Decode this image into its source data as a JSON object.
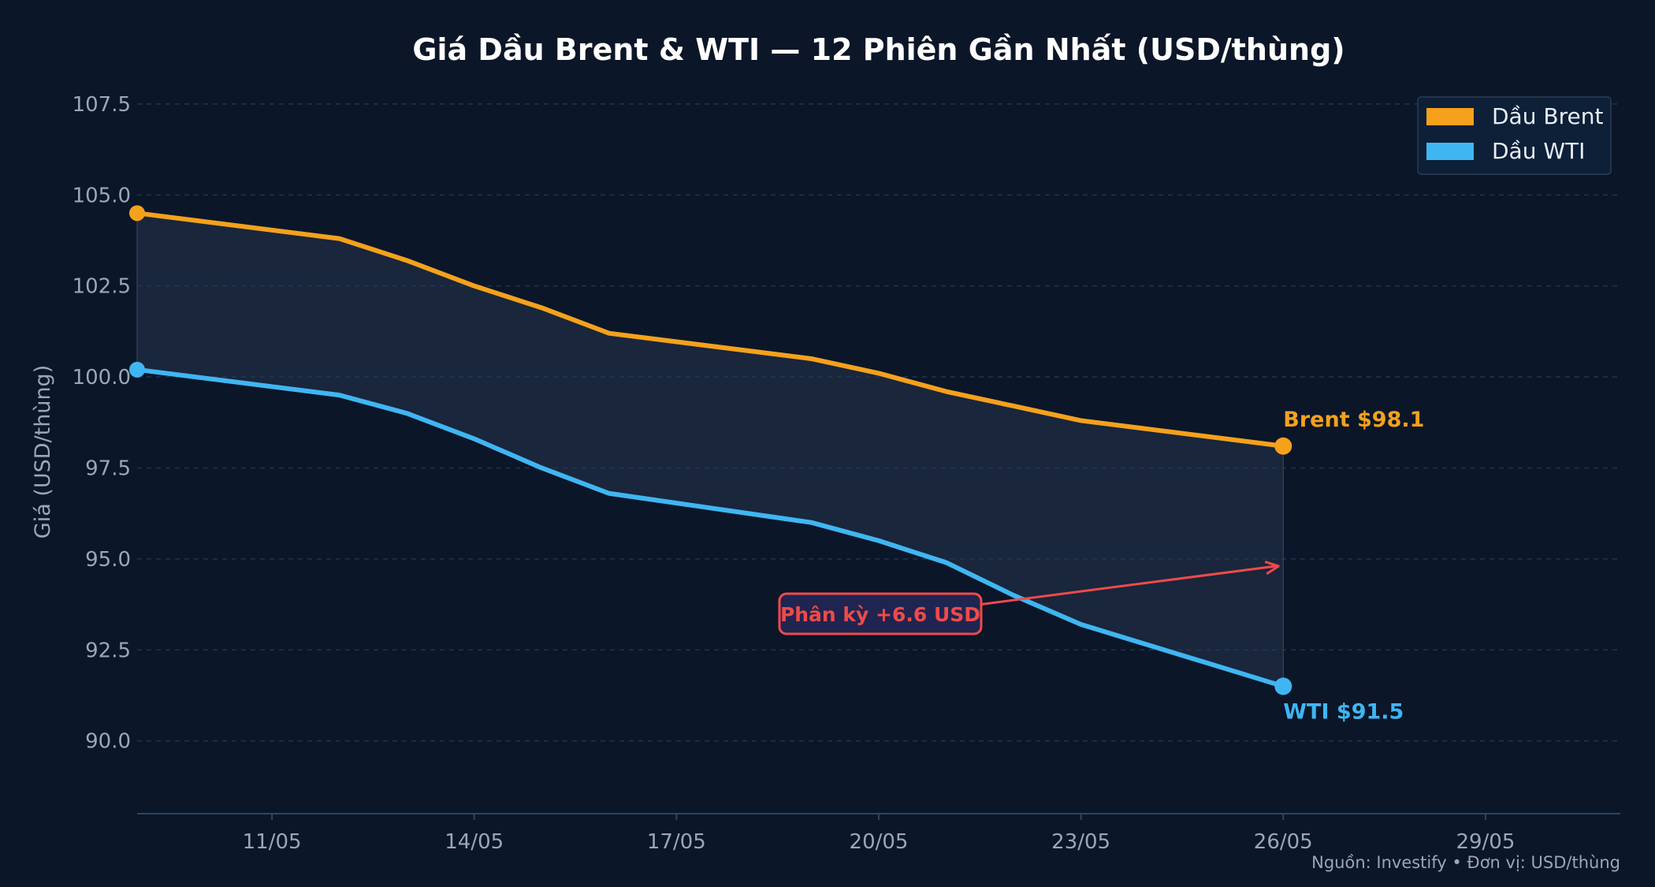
{
  "chart_data": {
    "type": "line",
    "title": "Giá Dầu Brent & WTI — 12 Phiên Gần Nhất (USD/thùng)",
    "ylabel": "Giá (USD/thùng)",
    "xlabel": "",
    "ylim": [
      88,
      107.8
    ],
    "yticks": [
      90.0,
      92.5,
      95.0,
      97.5,
      100.0,
      102.5,
      105.0,
      107.5
    ],
    "ytick_labels": [
      "90.0",
      "92.5",
      "95.0",
      "97.5",
      "100.0",
      "102.5",
      "105.0",
      "107.5"
    ],
    "xlim": [
      "2025-05-09",
      "2025-05-31"
    ],
    "xticks": [
      "2025-05-11",
      "2025-05-14",
      "2025-05-17",
      "2025-05-20",
      "2025-05-23",
      "2025-05-26",
      "2025-05-29"
    ],
    "xtick_labels": [
      "11/05",
      "14/05",
      "17/05",
      "20/05",
      "23/05",
      "26/05",
      "29/05"
    ],
    "x": [
      "2025-05-09",
      "2025-05-12",
      "2025-05-13",
      "2025-05-14",
      "2025-05-15",
      "2025-05-16",
      "2025-05-19",
      "2025-05-20",
      "2025-05-21",
      "2025-05-22",
      "2025-05-23",
      "2025-05-26"
    ],
    "series": [
      {
        "name": "Dầu Brent",
        "color": "#f5a11c",
        "values": [
          104.5,
          103.8,
          103.2,
          102.5,
          101.9,
          101.2,
          100.5,
          100.1,
          99.6,
          99.2,
          98.8,
          98.1
        ]
      },
      {
        "name": "Dầu WTI",
        "color": "#3fb6f2",
        "values": [
          100.2,
          99.5,
          99.0,
          98.3,
          97.5,
          96.8,
          96.0,
          95.5,
          94.9,
          94.0,
          93.2,
          91.5
        ]
      }
    ],
    "fill_between": true,
    "grid": "horizontal-dashed",
    "legend_position": "top-right",
    "end_labels": [
      "Brent  $98.1",
      "WTI  $91.5"
    ],
    "annotation": {
      "text": "Phân kỳ +6.6 USD",
      "color": "#f04a4a",
      "arrow_target": [
        "2025-05-26",
        94.8
      ]
    },
    "source": "Nguồn: Investify • Đơn vị: USD/thùng"
  }
}
